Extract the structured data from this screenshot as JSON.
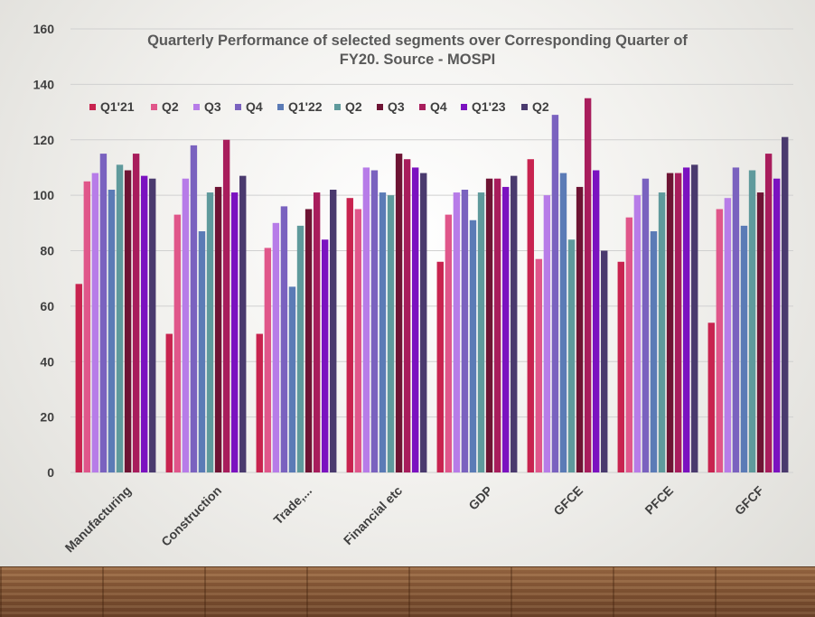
{
  "chart_data": {
    "type": "bar",
    "title": "Quarterly Performance of selected segments over Corresponding Quarter of FY20. Source - MOSPI",
    "title_lines": [
      "Quarterly Performance of selected segments over Corresponding Quarter of",
      "FY20. Source - MOSPI"
    ],
    "categories": [
      "Manufacturing",
      "Construction",
      "Trade,...",
      "Financial etc",
      "GDP",
      "GFCE",
      "PFCE",
      "GFCF"
    ],
    "ylim": [
      0,
      160
    ],
    "yticks": [
      0,
      20,
      40,
      60,
      80,
      100,
      120,
      140,
      160
    ],
    "grid": true,
    "legend_position": "top-left",
    "series": [
      {
        "name": "Q1'21",
        "color": "#c8234f",
        "values": [
          68,
          50,
          50,
          99,
          76,
          113,
          76,
          54
        ]
      },
      {
        "name": "Q2",
        "color": "#e0568a",
        "values": [
          105,
          93,
          81,
          95,
          93,
          77,
          92,
          95
        ]
      },
      {
        "name": "Q3",
        "color": "#b77ce8",
        "values": [
          108,
          106,
          90,
          110,
          101,
          100,
          100,
          99
        ]
      },
      {
        "name": "Q4",
        "color": "#7a62bf",
        "values": [
          115,
          118,
          96,
          109,
          102,
          129,
          106,
          110
        ]
      },
      {
        "name": "Q1'22",
        "color": "#5b7bb6",
        "values": [
          102,
          87,
          67,
          101,
          91,
          108,
          87,
          89
        ]
      },
      {
        "name": "Q2",
        "color": "#5f9a9c",
        "values": [
          111,
          101,
          89,
          100,
          101,
          84,
          101,
          109
        ]
      },
      {
        "name": "Q3",
        "color": "#6e1434",
        "values": [
          109,
          103,
          95,
          115,
          106,
          103,
          108,
          101
        ]
      },
      {
        "name": "Q4",
        "color": "#a81d5c",
        "values": [
          115,
          120,
          101,
          113,
          106,
          135,
          108,
          115
        ]
      },
      {
        "name": "Q1'23",
        "color": "#7b12c0",
        "values": [
          107,
          101,
          84,
          110,
          103,
          109,
          110,
          106
        ]
      },
      {
        "name": "Q2",
        "color": "#4a3a6e",
        "values": [
          106,
          107,
          102,
          108,
          107,
          80,
          111,
          121
        ]
      }
    ]
  }
}
